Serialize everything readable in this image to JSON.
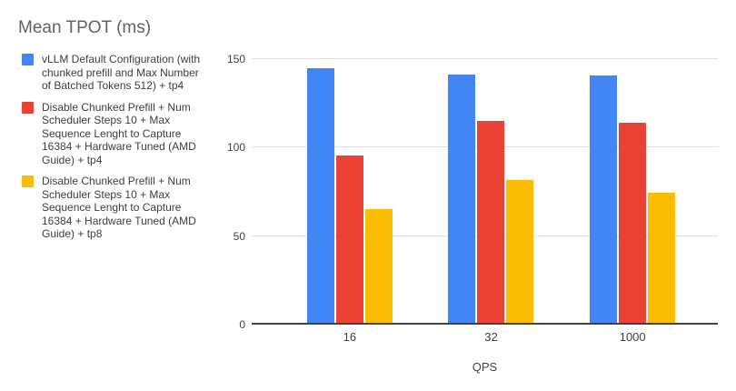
{
  "chart_data": {
    "type": "bar",
    "title": "Mean TPOT (ms)",
    "categories": [
      "16",
      "32",
      "1000"
    ],
    "series": [
      {
        "name": "vLLM Default Configuration (with chunked prefill and Max Number of Batched Tokens 512) + tp4",
        "color": "#4285F4",
        "values": [
          145,
          141,
          140.5
        ]
      },
      {
        "name": "Disable Chunked Prefill + Num Scheduler Steps 10 + Max Sequence Lenght to Capture 16384 + Hardware Tuned (AMD Guide) + tp4",
        "color": "#EA4335",
        "values": [
          95,
          115,
          114
        ]
      },
      {
        "name": "Disable Chunked Prefill + Num Scheduler Steps 10 + Max Sequence Lenght to Capture 16384 + Hardware Tuned (AMD Guide) + tp8",
        "color": "#FBBC04",
        "values": [
          64.5,
          81,
          74
        ]
      }
    ],
    "xlabel": "QPS",
    "ylabel": "",
    "ylim": [
      0,
      150
    ],
    "yticks": [
      0,
      50,
      100,
      150
    ],
    "grid": true,
    "legend_position": "left"
  }
}
